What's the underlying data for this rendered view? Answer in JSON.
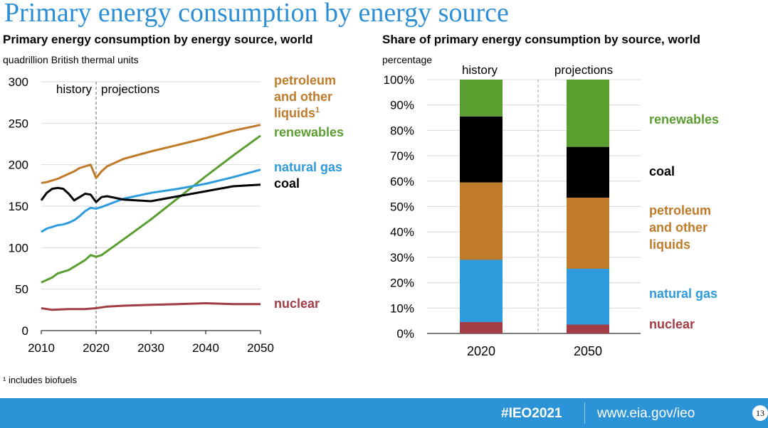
{
  "slide": {
    "title": "Primary energy consumption by energy source",
    "footnote": "¹ includes biofuels",
    "footer": {
      "hashtag": "#IEO2021",
      "url": "www.eia.gov/ieo",
      "page_number": "13"
    }
  },
  "colors": {
    "petroleum": "#bf7a2a",
    "renewables": "#5b9e30",
    "natural_gas": "#2e9bdc",
    "coal": "#000000",
    "nuclear": "#a23d45",
    "title_blue": "#2c8fd6",
    "footer_bar": "#2c94d6"
  },
  "chart_data": [
    {
      "type": "line",
      "title": "Primary energy consumption by energy source, world",
      "ylabel": "quadrillion British thermal units",
      "xlim": [
        2010,
        2050
      ],
      "ylim": [
        0,
        300
      ],
      "x_ticks": [
        "2010",
        "2020",
        "2030",
        "2040",
        "2050"
      ],
      "y_ticks": [
        "0",
        "50",
        "100",
        "150",
        "200",
        "250",
        "300"
      ],
      "divider_year": 2020,
      "divider_labels": [
        "history",
        "projections"
      ],
      "series": [
        {
          "key": "petroleum",
          "name": "petroleum and other liquids",
          "label_lines": [
            "petroleum",
            "and other",
            "liquids"
          ],
          "superscript": "1",
          "points": [
            [
              2010,
              178
            ],
            [
              2011,
              179
            ],
            [
              2012,
              181
            ],
            [
              2013,
              183
            ],
            [
              2014,
              186
            ],
            [
              2015,
              189
            ],
            [
              2016,
              192
            ],
            [
              2017,
              196
            ],
            [
              2018,
              198
            ],
            [
              2019,
              200
            ],
            [
              2020,
              184
            ],
            [
              2021,
              192
            ],
            [
              2022,
              198
            ],
            [
              2025,
              207
            ],
            [
              2030,
              216
            ],
            [
              2035,
              224
            ],
            [
              2040,
              232
            ],
            [
              2045,
              241
            ],
            [
              2050,
              248
            ]
          ]
        },
        {
          "key": "renewables",
          "name": "renewables",
          "label_lines": [
            "renewables"
          ],
          "points": [
            [
              2010,
              58
            ],
            [
              2011,
              61
            ],
            [
              2012,
              64
            ],
            [
              2013,
              69
            ],
            [
              2014,
              71
            ],
            [
              2015,
              73
            ],
            [
              2016,
              77
            ],
            [
              2017,
              81
            ],
            [
              2018,
              85
            ],
            [
              2019,
              91
            ],
            [
              2020,
              89
            ],
            [
              2021,
              91
            ],
            [
              2025,
              110
            ],
            [
              2030,
              134
            ],
            [
              2035,
              160
            ],
            [
              2040,
              186
            ],
            [
              2045,
              211
            ],
            [
              2050,
              235
            ]
          ]
        },
        {
          "key": "natural_gas",
          "name": "natural gas",
          "label_lines": [
            "natural gas"
          ],
          "points": [
            [
              2010,
              119
            ],
            [
              2011,
              123
            ],
            [
              2012,
              125
            ],
            [
              2013,
              127
            ],
            [
              2014,
              128
            ],
            [
              2015,
              130
            ],
            [
              2016,
              133
            ],
            [
              2017,
              138
            ],
            [
              2018,
              144
            ],
            [
              2019,
              148
            ],
            [
              2020,
              147
            ],
            [
              2021,
              149
            ],
            [
              2025,
              159
            ],
            [
              2030,
              166
            ],
            [
              2035,
              171
            ],
            [
              2040,
              177
            ],
            [
              2045,
              185
            ],
            [
              2050,
              194
            ]
          ]
        },
        {
          "key": "coal",
          "name": "coal",
          "label_lines": [
            "coal"
          ],
          "points": [
            [
              2010,
              157
            ],
            [
              2011,
              166
            ],
            [
              2012,
              171
            ],
            [
              2013,
              172
            ],
            [
              2014,
              171
            ],
            [
              2015,
              165
            ],
            [
              2016,
              157
            ],
            [
              2017,
              161
            ],
            [
              2018,
              165
            ],
            [
              2019,
              164
            ],
            [
              2020,
              155
            ],
            [
              2021,
              161
            ],
            [
              2022,
              162
            ],
            [
              2025,
              158
            ],
            [
              2030,
              156
            ],
            [
              2035,
              162
            ],
            [
              2040,
              168
            ],
            [
              2045,
              174
            ],
            [
              2050,
              176
            ]
          ]
        },
        {
          "key": "nuclear",
          "name": "nuclear",
          "label_lines": [
            "nuclear"
          ],
          "points": [
            [
              2010,
              27
            ],
            [
              2012,
              25
            ],
            [
              2015,
              26
            ],
            [
              2018,
              26
            ],
            [
              2020,
              27
            ],
            [
              2022,
              29
            ],
            [
              2025,
              30
            ],
            [
              2030,
              31
            ],
            [
              2035,
              32
            ],
            [
              2040,
              33
            ],
            [
              2045,
              32
            ],
            [
              2050,
              32
            ]
          ]
        }
      ]
    },
    {
      "type": "bar",
      "stacked": true,
      "title": "Share of primary energy consumption by source, world",
      "ylabel": "percentage",
      "ylim": [
        0,
        100
      ],
      "y_ticks": [
        "0%",
        "10%",
        "20%",
        "30%",
        "40%",
        "50%",
        "60%",
        "70%",
        "80%",
        "90%",
        "100%"
      ],
      "categories": [
        "2020",
        "2050"
      ],
      "group_labels": [
        "history",
        "projections"
      ],
      "series": [
        {
          "key": "nuclear",
          "name": "nuclear",
          "label_lines": [
            "nuclear"
          ],
          "values": [
            4.5,
            3.5
          ]
        },
        {
          "key": "natural_gas",
          "name": "natural gas",
          "label_lines": [
            "natural gas"
          ],
          "values": [
            24.5,
            22
          ]
        },
        {
          "key": "petroleum",
          "name": "petroleum and other liquids",
          "label_lines": [
            "petroleum",
            "and other",
            "liquids"
          ],
          "values": [
            30.5,
            28
          ]
        },
        {
          "key": "coal",
          "name": "coal",
          "label_lines": [
            "coal"
          ],
          "values": [
            26,
            20
          ]
        },
        {
          "key": "renewables",
          "name": "renewables",
          "label_lines": [
            "renewables"
          ],
          "values": [
            14.5,
            26.5
          ]
        }
      ]
    }
  ]
}
